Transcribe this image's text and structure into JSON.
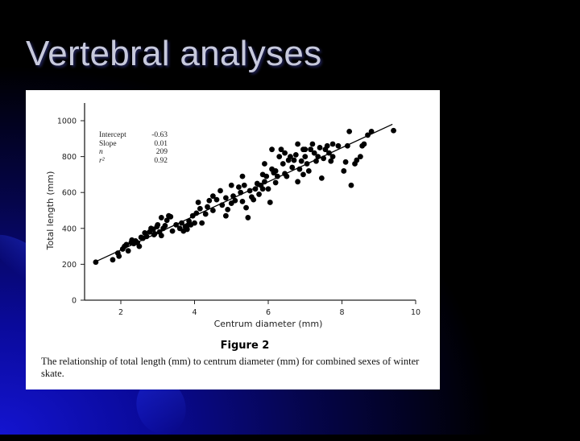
{
  "slide": {
    "title": "Vertebral analyses",
    "colors": {
      "background": "#000000",
      "accent_blue": "#1414d0",
      "title_text": "#c7c9dc",
      "panel": "#ffffff"
    }
  },
  "figure": {
    "label": "Figure 2",
    "caption": "The relationship of total length (mm) to centrum diameter (mm) for combined sexes of winter skate."
  },
  "chart_data": {
    "type": "scatter",
    "title": "",
    "xlabel": "Centrum diameter (mm)",
    "ylabel": "Total length (mm)",
    "xlim": [
      1,
      10
    ],
    "ylim": [
      0,
      1100
    ],
    "xticks": [
      2,
      4,
      6,
      8,
      10
    ],
    "yticks": [
      0,
      200,
      400,
      600,
      800,
      1000
    ],
    "grid": false,
    "legend": null,
    "stats": {
      "labels": [
        "Intercept",
        "Slope",
        "n",
        "r²"
      ],
      "values": [
        "-0.63",
        "0.01",
        "209",
        "0.92"
      ]
    },
    "regression_line": {
      "x": [
        1.32,
        9.37
      ],
      "y": [
        215,
        980
      ]
    },
    "series": [
      {
        "name": "winter skate",
        "points": [
          [
            1.32,
            212
          ],
          [
            1.78,
            225
          ],
          [
            1.95,
            245
          ],
          [
            1.92,
            262
          ],
          [
            2.05,
            285
          ],
          [
            2.1,
            300
          ],
          [
            2.15,
            310
          ],
          [
            2.2,
            275
          ],
          [
            2.28,
            320
          ],
          [
            2.35,
            315
          ],
          [
            2.4,
            330
          ],
          [
            2.45,
            320
          ],
          [
            2.5,
            300
          ],
          [
            2.6,
            345
          ],
          [
            2.65,
            375
          ],
          [
            2.7,
            355
          ],
          [
            2.78,
            380
          ],
          [
            2.82,
            400
          ],
          [
            2.88,
            395
          ],
          [
            2.92,
            370
          ],
          [
            2.98,
            410
          ],
          [
            3.05,
            380
          ],
          [
            3.1,
            360
          ],
          [
            3.15,
            400
          ],
          [
            3.2,
            415
          ],
          [
            3.25,
            445
          ],
          [
            3.3,
            470
          ],
          [
            3.1,
            460
          ],
          [
            3.0,
            420
          ],
          [
            2.9,
            365
          ],
          [
            3.4,
            385
          ],
          [
            3.5,
            420
          ],
          [
            3.6,
            400
          ],
          [
            3.65,
            430
          ],
          [
            3.7,
            385
          ],
          [
            3.75,
            410
          ],
          [
            3.8,
            415
          ],
          [
            3.85,
            440
          ],
          [
            3.9,
            420
          ],
          [
            3.95,
            470
          ],
          [
            4.0,
            430
          ],
          [
            4.05,
            485
          ],
          [
            4.1,
            545
          ],
          [
            4.15,
            510
          ],
          [
            4.3,
            480
          ],
          [
            4.35,
            520
          ],
          [
            4.4,
            555
          ],
          [
            4.5,
            500
          ],
          [
            4.6,
            560
          ],
          [
            4.7,
            610
          ],
          [
            4.75,
            530
          ],
          [
            4.85,
            470
          ],
          [
            4.9,
            505
          ],
          [
            5.0,
            540
          ],
          [
            5.05,
            580
          ],
          [
            5.1,
            555
          ],
          [
            5.2,
            630
          ],
          [
            5.25,
            600
          ],
          [
            5.3,
            550
          ],
          [
            5.35,
            640
          ],
          [
            5.4,
            515
          ],
          [
            5.45,
            460
          ],
          [
            5.5,
            610
          ],
          [
            5.55,
            575
          ],
          [
            5.6,
            560
          ],
          [
            5.65,
            620
          ],
          [
            5.7,
            650
          ],
          [
            5.75,
            590
          ],
          [
            5.8,
            640
          ],
          [
            5.85,
            700
          ],
          [
            5.9,
            660
          ],
          [
            5.95,
            690
          ],
          [
            6.0,
            620
          ],
          [
            6.05,
            545
          ],
          [
            6.1,
            730
          ],
          [
            6.15,
            710
          ],
          [
            6.2,
            655
          ],
          [
            6.25,
            690
          ],
          [
            6.3,
            800
          ],
          [
            6.35,
            840
          ],
          [
            6.4,
            760
          ],
          [
            6.45,
            705
          ],
          [
            6.5,
            690
          ],
          [
            6.55,
            780
          ],
          [
            6.6,
            800
          ],
          [
            6.65,
            740
          ],
          [
            6.7,
            780
          ],
          [
            6.75,
            810
          ],
          [
            6.8,
            660
          ],
          [
            6.85,
            730
          ],
          [
            6.9,
            775
          ],
          [
            6.95,
            700
          ],
          [
            7.0,
            800
          ],
          [
            7.05,
            760
          ],
          [
            7.1,
            720
          ],
          [
            7.15,
            840
          ],
          [
            7.2,
            870
          ],
          [
            7.25,
            820
          ],
          [
            7.3,
            775
          ],
          [
            7.35,
            800
          ],
          [
            7.4,
            850
          ],
          [
            7.45,
            680
          ],
          [
            7.5,
            790
          ],
          [
            7.55,
            840
          ],
          [
            7.6,
            860
          ],
          [
            7.65,
            820
          ],
          [
            7.7,
            775
          ],
          [
            7.75,
            800
          ],
          [
            7.9,
            860
          ],
          [
            8.05,
            720
          ],
          [
            8.1,
            770
          ],
          [
            8.15,
            860
          ],
          [
            8.2,
            940
          ],
          [
            8.25,
            640
          ],
          [
            8.35,
            760
          ],
          [
            8.4,
            780
          ],
          [
            8.5,
            800
          ],
          [
            8.55,
            860
          ],
          [
            8.6,
            870
          ],
          [
            8.7,
            920
          ],
          [
            8.8,
            940
          ],
          [
            9.4,
            945
          ],
          [
            6.1,
            840
          ],
          [
            5.9,
            760
          ],
          [
            6.2,
            720
          ],
          [
            5.3,
            690
          ],
          [
            4.85,
            570
          ],
          [
            4.2,
            430
          ],
          [
            3.35,
            465
          ],
          [
            2.55,
            350
          ],
          [
            6.95,
            840
          ],
          [
            7.75,
            870
          ],
          [
            7.0,
            840
          ],
          [
            6.45,
            820
          ],
          [
            6.8,
            870
          ],
          [
            5.85,
            620
          ],
          [
            5.0,
            640
          ],
          [
            4.5,
            580
          ],
          [
            3.8,
            395
          ],
          [
            2.3,
            335
          ]
        ]
      }
    ]
  }
}
